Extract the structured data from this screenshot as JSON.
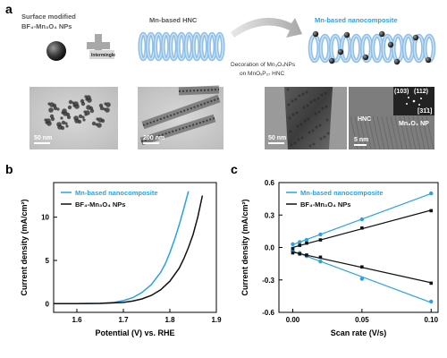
{
  "panels": {
    "a": "a",
    "b": "b",
    "c": "c"
  },
  "scheme": {
    "surface_label_1": "Surface modified",
    "surface_label_2": "BF₄-Mn₃O₄ NPs",
    "intermingle": "Intermingle",
    "hnc_label": "Mn-based HNC",
    "decoration_1": "Decoration of Mn₃O₄NPs",
    "decoration_2": "on MnOₓP₂₇ HNC",
    "nanocomposite_label": "Mn-based nanocomposite"
  },
  "tem": {
    "scale_1": "50 nm",
    "scale_2": "200 nm",
    "scale_3": "50 nm",
    "scale_4": "5 nm",
    "fft_1": "(103)",
    "fft_2": "(112)",
    "fft_3": "[31̄1]",
    "hnc": "HNC",
    "np": "Mn₃O₄ NP"
  },
  "colors": {
    "blue": "#29a3df",
    "black": "#111111"
  },
  "chart_data": [
    {
      "type": "line",
      "xlabel": "Potential (V) vs. RHE",
      "ylabel": "Current density (mA/cm²)",
      "xlim": [
        1.55,
        1.9
      ],
      "ylim": [
        -1,
        14
      ],
      "xticks": [
        "1.6",
        "1.7",
        "1.8",
        "1.9"
      ],
      "yticks": [
        "0",
        "5",
        "10"
      ],
      "legend_position": "top-left",
      "series": [
        {
          "name": "Mn-based nanocomposite",
          "color": "#29a3df",
          "x": [
            1.55,
            1.6,
            1.65,
            1.68,
            1.7,
            1.72,
            1.74,
            1.76,
            1.78,
            1.79,
            1.8,
            1.81,
            1.82,
            1.83,
            1.84
          ],
          "y": [
            0.0,
            0.0,
            0.05,
            0.15,
            0.35,
            0.7,
            1.3,
            2.2,
            3.6,
            4.6,
            5.9,
            7.4,
            9.1,
            11.0,
            13.0
          ]
        },
        {
          "name": "BF₄-Mn₃O₄ NPs",
          "color": "#111111",
          "x": [
            1.55,
            1.6,
            1.65,
            1.7,
            1.72,
            1.74,
            1.76,
            1.78,
            1.8,
            1.82,
            1.83,
            1.84,
            1.85,
            1.86,
            1.87
          ],
          "y": [
            0.0,
            0.0,
            0.03,
            0.15,
            0.3,
            0.55,
            0.95,
            1.6,
            2.6,
            4.1,
            5.2,
            6.5,
            8.0,
            10.0,
            12.5
          ]
        }
      ]
    },
    {
      "type": "scatter",
      "xlabel": "Scan rate (V/s)",
      "ylabel": "Current density (mA/cm²)",
      "xlim": [
        -0.01,
        0.105
      ],
      "ylim": [
        -0.6,
        0.6
      ],
      "xticks": [
        "0.00",
        "0.05",
        "0.10"
      ],
      "yticks": [
        "-0.6",
        "-0.3",
        "0.0",
        "0.3",
        "0.6"
      ],
      "legend_position": "top-left",
      "series": [
        {
          "name": "Mn-based nanocomposite",
          "color": "#29a3df",
          "x": [
            0.0,
            0.005,
            0.01,
            0.02,
            0.05,
            0.1
          ],
          "y": [
            0.03,
            0.05,
            0.07,
            0.12,
            0.26,
            0.5
          ]
        },
        {
          "name": "",
          "color": "#29a3df",
          "x": [
            0.0,
            0.005,
            0.01,
            0.02,
            0.05,
            0.1
          ],
          "y": [
            -0.03,
            -0.05,
            -0.08,
            -0.13,
            -0.29,
            -0.5
          ]
        },
        {
          "name": "BF₄-Mn₃O₄ NPs",
          "color": "#111111",
          "x": [
            0.0,
            0.005,
            0.01,
            0.02,
            0.05,
            0.1
          ],
          "y": [
            -0.01,
            0.02,
            0.04,
            0.07,
            0.18,
            0.34
          ]
        },
        {
          "name": "",
          "color": "#111111",
          "x": [
            0.0,
            0.005,
            0.01,
            0.02,
            0.05,
            0.1
          ],
          "y": [
            -0.05,
            -0.06,
            -0.07,
            -0.09,
            -0.18,
            -0.33
          ]
        }
      ]
    }
  ]
}
